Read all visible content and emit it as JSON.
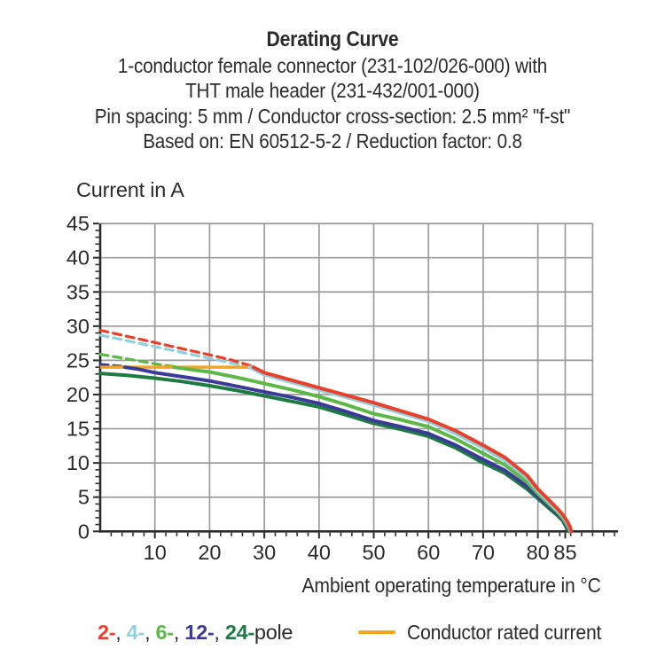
{
  "header": {
    "title": "Derating Curve",
    "sub1": "1-conductor female connector (231-102/026-000) with",
    "sub2": "THT male header (231-432/001-000)",
    "sub3": "Pin spacing: 5 mm / Conductor cross-section: 2.5 mm² \"f-st\"",
    "sub4": "Based on: EN 60512-5-2 / Reduction factor: 0.8"
  },
  "chart_data": {
    "type": "line",
    "title": "Derating Curve",
    "ylabel": "Current in A",
    "xlabel": "Ambient operating temperature in °C",
    "xlim": [
      0,
      94
    ],
    "ylim": [
      0,
      45
    ],
    "x_major_ticks": [
      10,
      20,
      30,
      40,
      50,
      60,
      70,
      80,
      85
    ],
    "x_minor_tick_step": 2,
    "x_minor_tick_max": 94,
    "y_major_ticks": [
      0,
      5,
      10,
      15,
      20,
      25,
      30,
      35,
      40,
      45
    ],
    "y_minor_tick_step": 1,
    "x_gridlines": [
      10,
      20,
      30,
      40,
      50,
      60,
      70,
      80,
      85,
      90
    ],
    "y_gridlines": [
      5,
      10,
      15,
      20,
      25,
      30,
      35,
      40,
      45
    ],
    "grid": true,
    "grid_color": "#9b9b9b",
    "axis_color": "#2b2b2b",
    "text_color": "#2b2b2b",
    "rated_current": {
      "label": "Conductor rated current",
      "value": 24,
      "t_start": 0,
      "t_end": 28,
      "color": "#f6a31e"
    },
    "legend": {
      "separator": ", ",
      "suffix": "pole"
    },
    "series": [
      {
        "name": "2-pole",
        "legend_label": "2-",
        "color": "#e8402a",
        "dashed": [
          [
            0,
            29.4
          ],
          [
            5,
            28.5
          ],
          [
            10,
            27.6
          ],
          [
            15,
            26.7
          ],
          [
            20,
            25.8
          ],
          [
            24,
            25.05
          ],
          [
            28,
            24.1
          ]
        ],
        "solid": [
          [
            28,
            24
          ],
          [
            30,
            23.2
          ],
          [
            35,
            22.1
          ],
          [
            40,
            21
          ],
          [
            45,
            19.9
          ],
          [
            50,
            18.8
          ],
          [
            55,
            17.6
          ],
          [
            60,
            16.4
          ],
          [
            65,
            14.7
          ],
          [
            70,
            12.6
          ],
          [
            74,
            10.8
          ],
          [
            78,
            8.2
          ],
          [
            80,
            6.2
          ],
          [
            82,
            4.6
          ],
          [
            83.5,
            3.4
          ],
          [
            84.6,
            2.4
          ],
          [
            85.4,
            1.4
          ],
          [
            85.9,
            0.6
          ],
          [
            86.1,
            0
          ]
        ]
      },
      {
        "name": "4-pole",
        "legend_label": "4-",
        "color": "#90d0dc",
        "dashed": [
          [
            0,
            28.7
          ],
          [
            5,
            27.85
          ],
          [
            10,
            27
          ],
          [
            15,
            26.15
          ],
          [
            20,
            25.3
          ],
          [
            24,
            24.6
          ],
          [
            27.3,
            24.1
          ]
        ],
        "solid": [
          [
            27.3,
            24
          ],
          [
            30,
            22.9
          ],
          [
            35,
            21.8
          ],
          [
            40,
            20.7
          ],
          [
            45,
            19.6
          ],
          [
            50,
            18.5
          ],
          [
            55,
            17.3
          ],
          [
            60,
            16.1
          ],
          [
            65,
            14.3
          ],
          [
            70,
            12.2
          ],
          [
            74,
            10.4
          ],
          [
            78,
            7.8
          ],
          [
            80,
            5.9
          ],
          [
            82,
            4.3
          ],
          [
            83.5,
            3.1
          ],
          [
            84.6,
            2.2
          ],
          [
            85.3,
            1.3
          ],
          [
            85.8,
            0.5
          ],
          [
            86,
            0
          ]
        ]
      },
      {
        "name": "6-pole",
        "legend_label": "6-",
        "color": "#5cb847",
        "dashed": [
          [
            0,
            25.9
          ],
          [
            5,
            25.2
          ],
          [
            10,
            24.5
          ],
          [
            13.5,
            24.1
          ]
        ],
        "solid": [
          [
            13.5,
            24
          ],
          [
            17,
            23.6
          ],
          [
            20,
            23.3
          ],
          [
            25,
            22.5
          ],
          [
            30,
            21.6
          ],
          [
            35,
            20.7
          ],
          [
            40,
            19.7
          ],
          [
            45,
            18.5
          ],
          [
            50,
            17.2
          ],
          [
            55,
            16.3
          ],
          [
            60,
            15.3
          ],
          [
            65,
            13.5
          ],
          [
            70,
            11.4
          ],
          [
            74,
            9.7
          ],
          [
            78,
            7.2
          ],
          [
            80,
            5.5
          ],
          [
            82,
            4
          ],
          [
            83.5,
            2.9
          ],
          [
            84.5,
            2
          ],
          [
            85.2,
            1.1
          ],
          [
            85.7,
            0.4
          ],
          [
            85.9,
            0
          ]
        ]
      },
      {
        "name": "12-pole",
        "legend_label": "12-",
        "color": "#3c3a98",
        "dashed": [
          [
            0,
            24.4
          ],
          [
            4.5,
            24.1
          ]
        ],
        "solid": [
          [
            4.5,
            24
          ],
          [
            7,
            23.7
          ],
          [
            10,
            23.2
          ],
          [
            15,
            22.6
          ],
          [
            20,
            22
          ],
          [
            25,
            21.2
          ],
          [
            30,
            20.4
          ],
          [
            35,
            19.6
          ],
          [
            40,
            18.7
          ],
          [
            45,
            17.5
          ],
          [
            50,
            16.2
          ],
          [
            55,
            15.3
          ],
          [
            60,
            14.3
          ],
          [
            65,
            12.6
          ],
          [
            70,
            10.5
          ],
          [
            74,
            8.9
          ],
          [
            78,
            6.6
          ],
          [
            80,
            5.1
          ],
          [
            82,
            3.7
          ],
          [
            83.5,
            2.6
          ],
          [
            84.5,
            1.8
          ],
          [
            85.1,
            1
          ],
          [
            85.6,
            0.3
          ],
          [
            85.8,
            0
          ]
        ]
      },
      {
        "name": "24-pole",
        "legend_label": "24-",
        "color": "#1d7b41",
        "dashed": [],
        "solid": [
          [
            0,
            23.1
          ],
          [
            5,
            22.8
          ],
          [
            10,
            22.4
          ],
          [
            15,
            21.9
          ],
          [
            20,
            21.3
          ],
          [
            25,
            20.6
          ],
          [
            30,
            19.8
          ],
          [
            35,
            19
          ],
          [
            40,
            18.2
          ],
          [
            45,
            17
          ],
          [
            50,
            15.8
          ],
          [
            55,
            14.9
          ],
          [
            60,
            13.9
          ],
          [
            65,
            12.2
          ],
          [
            70,
            10
          ],
          [
            74,
            8.5
          ],
          [
            78,
            6.2
          ],
          [
            80,
            4.8
          ],
          [
            82,
            3.4
          ],
          [
            83.5,
            2.4
          ],
          [
            84.5,
            1.6
          ],
          [
            85,
            0.9
          ],
          [
            85.5,
            0.2
          ],
          [
            85.7,
            0
          ]
        ]
      }
    ]
  }
}
